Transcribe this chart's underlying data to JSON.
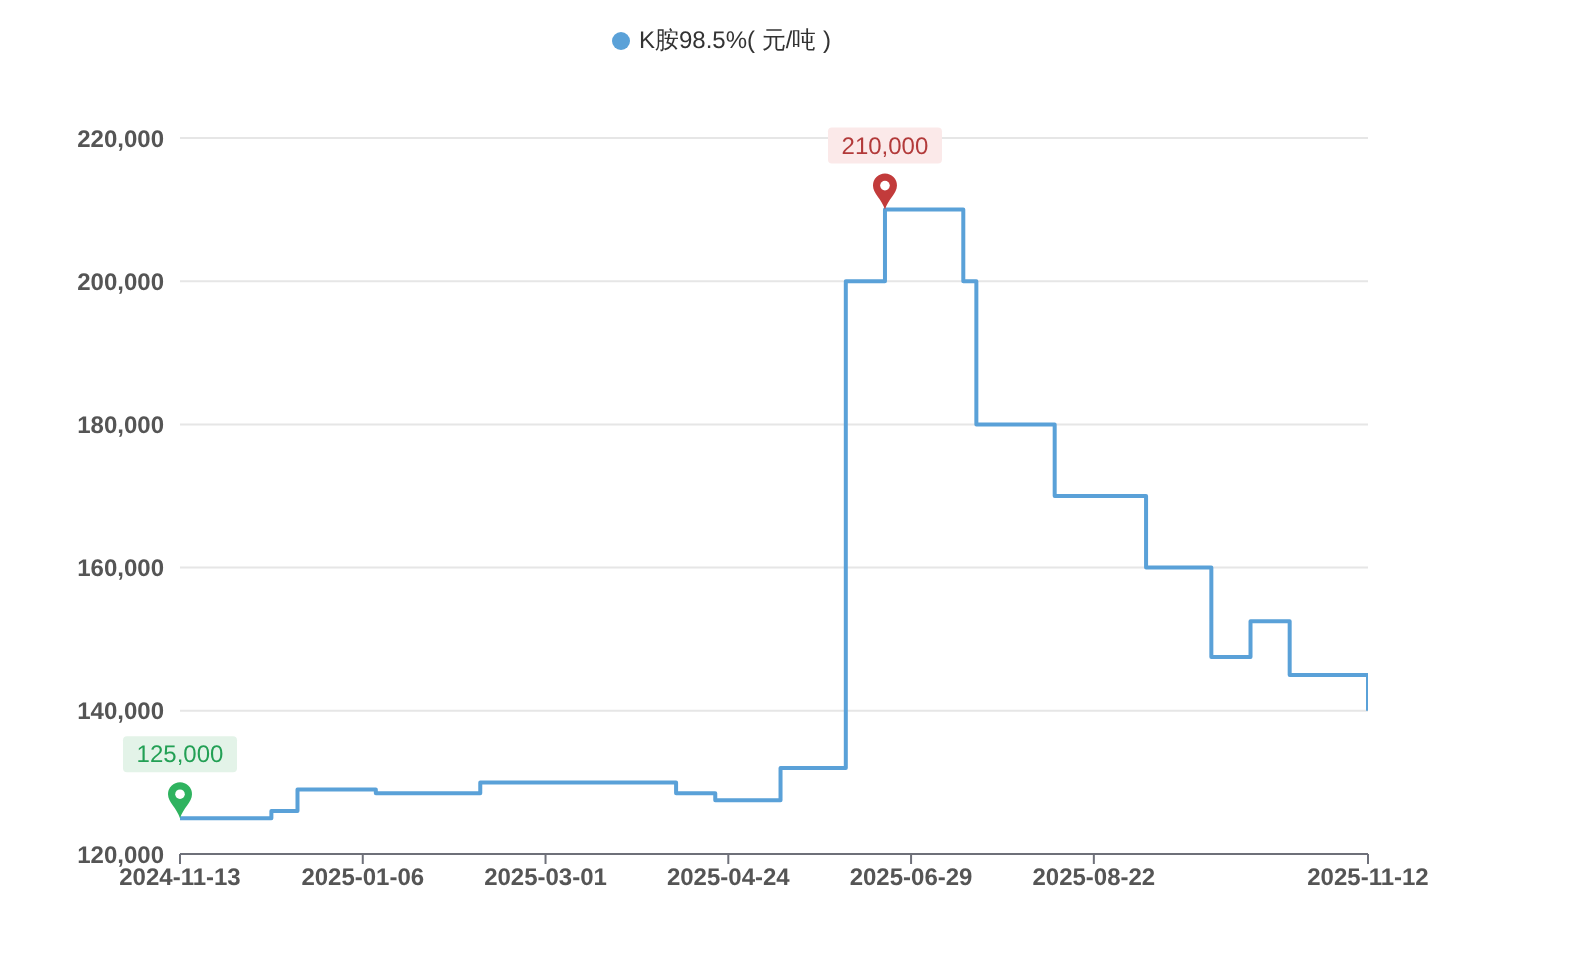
{
  "chart_data": {
    "type": "step",
    "categories": [
      "2024-11-13",
      null,
      null,
      null,
      null,
      null,
      null,
      null,
      null,
      null,
      null,
      null,
      null,
      null,
      "2025-01-06",
      null,
      null,
      null,
      null,
      null,
      null,
      null,
      null,
      null,
      null,
      null,
      null,
      null,
      "2025-03-01",
      null,
      null,
      null,
      null,
      null,
      null,
      null,
      null,
      null,
      null,
      null,
      null,
      null,
      "2025-04-24",
      null,
      null,
      null,
      null,
      null,
      null,
      null,
      null,
      null,
      null,
      null,
      null,
      null,
      "2025-06-29",
      null,
      null,
      null,
      null,
      null,
      null,
      null,
      null,
      null,
      null,
      null,
      null,
      null,
      "2025-08-22",
      null,
      null,
      null,
      null,
      null,
      null,
      null,
      null,
      null,
      null,
      null,
      null,
      null,
      null,
      null,
      null,
      null,
      null,
      null,
      null,
      "2025-11-12"
    ],
    "series": [
      {
        "name": "K胺98.5%( 元/吨 )",
        "color": "#5aa1d8",
        "values": [
          125000,
          125000,
          125000,
          125000,
          125000,
          125000,
          125000,
          126000,
          126000,
          129000,
          129000,
          129000,
          129000,
          129000,
          129000,
          128500,
          128500,
          128500,
          128500,
          128500,
          128500,
          128500,
          128500,
          130000,
          130000,
          130000,
          130000,
          130000,
          130000,
          130000,
          130000,
          130000,
          130000,
          130000,
          130000,
          130000,
          130000,
          130000,
          128500,
          128500,
          128500,
          127500,
          127500,
          127500,
          127500,
          127500,
          132000,
          132000,
          132000,
          132000,
          132000,
          200000,
          200000,
          200000,
          210000,
          210000,
          210000,
          210000,
          210000,
          210000,
          200000,
          180000,
          180000,
          180000,
          180000,
          180000,
          180000,
          170000,
          170000,
          170000,
          170000,
          170000,
          170000,
          170000,
          160000,
          160000,
          160000,
          160000,
          160000,
          147500,
          147500,
          147500,
          152500,
          152500,
          152500,
          145000,
          145000,
          145000,
          145000,
          145000,
          145000,
          140000
        ]
      }
    ],
    "ylim": [
      120000,
      220000
    ],
    "yticks": [
      {
        "value": 120000,
        "label": "120,000"
      },
      {
        "value": 140000,
        "label": "140,000"
      },
      {
        "value": 160000,
        "label": "160,000"
      },
      {
        "value": 180000,
        "label": "180,000"
      },
      {
        "value": 200000,
        "label": "200,000"
      },
      {
        "value": 220000,
        "label": "220,000"
      }
    ],
    "grid": "y",
    "legend": "top",
    "annotations": [
      {
        "text": "125,000",
        "x": "2024-11-13",
        "y": 125000
      },
      {
        "text": "210,000",
        "y": 210000
      }
    ]
  }
}
